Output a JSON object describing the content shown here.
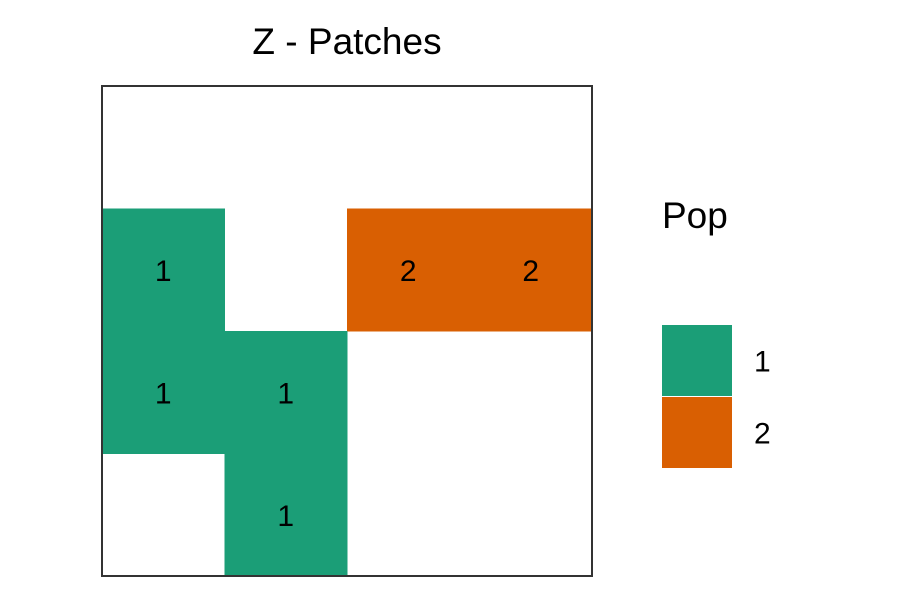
{
  "chart_data": {
    "type": "heatmap",
    "title": "Z - Patches",
    "xlabel": "",
    "ylabel": "",
    "ncols": 4,
    "nrows": 4,
    "grid": false,
    "cells": [
      {
        "row": 1,
        "col": 0,
        "value": "1"
      },
      {
        "row": 1,
        "col": 2,
        "value": "2"
      },
      {
        "row": 1,
        "col": 3,
        "value": "2"
      },
      {
        "row": 2,
        "col": 0,
        "value": "1"
      },
      {
        "row": 2,
        "col": 1,
        "value": "1"
      },
      {
        "row": 3,
        "col": 1,
        "value": "1"
      }
    ],
    "legend": {
      "title": "Pop",
      "position": "right",
      "entries": [
        {
          "label": "1",
          "color": "#1B9E77"
        },
        {
          "label": "2",
          "color": "#D95F02"
        }
      ]
    },
    "background_color": "#FFFFFF",
    "frame_color": "#333333"
  }
}
